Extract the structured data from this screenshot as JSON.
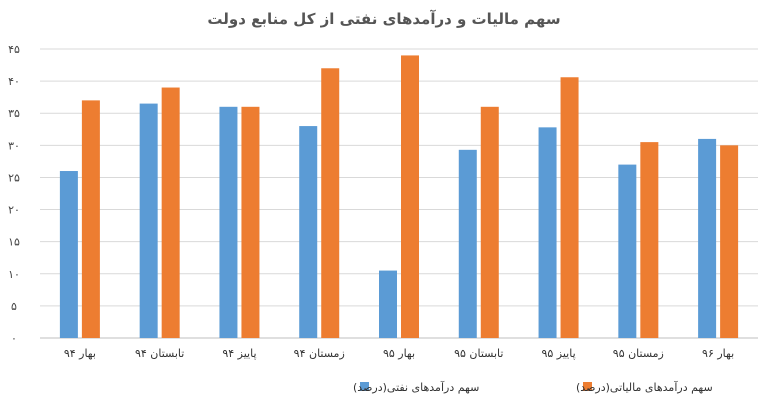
{
  "chart_data": {
    "type": "bar",
    "title": "سهم مالیات و درآمدهای نفتی از کل منابع دولت",
    "categories": [
      "بهار ۹۴",
      "تابستان ۹۴",
      "پاییز ۹۴",
      "زمستان ۹۴",
      "بهار ۹۵",
      "تابستان ۹۵",
      "پاییز ۹۵",
      "زمستان ۹۵",
      "بهار ۹۶"
    ],
    "series": [
      {
        "name": "سهم درآمدهای نفتی(درصد)",
        "color": "#5b9bd5",
        "values": [
          26,
          36.5,
          36,
          33,
          10.5,
          29.3,
          32.8,
          27,
          31
        ]
      },
      {
        "name": "سهم درآمدهای مالیاتی(درصد)",
        "color": "#ed7d31",
        "values": [
          37,
          39,
          36,
          42,
          44,
          36,
          40.6,
          30.5,
          30
        ]
      }
    ],
    "ylim": [
      0,
      45
    ],
    "yticks": [
      "۰",
      "۵",
      "۱۰",
      "۱۵",
      "۲۰",
      "۲۵",
      "۳۰",
      "۳۵",
      "۴۰",
      "۴۵"
    ],
    "xlabel": "",
    "ylabel": "",
    "grid": true,
    "legend_position": "bottom"
  }
}
